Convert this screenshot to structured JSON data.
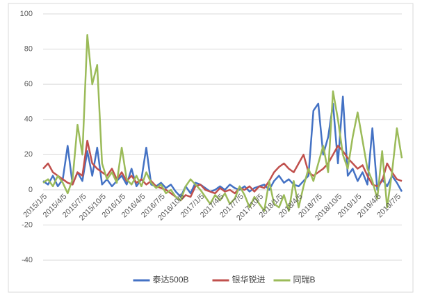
{
  "chart_data": {
    "type": "line",
    "categories": [
      "2015/1/5",
      null,
      null,
      null,
      "2015/4/5",
      null,
      null,
      null,
      "2015/7/5",
      null,
      null,
      null,
      "2015/10/5",
      null,
      null,
      null,
      "2016/1/5",
      null,
      null,
      null,
      "2016/4/5",
      null,
      null,
      null,
      "2016/7/5",
      null,
      null,
      null,
      "2016/10/5",
      null,
      null,
      null,
      "2017/1/5",
      null,
      null,
      null,
      "2017/4/5",
      null,
      null,
      null,
      "2017/7/5",
      null,
      null,
      null,
      "2017/10/5",
      null,
      null,
      null,
      "2018/1/5",
      null,
      null,
      null,
      "2018/4/5",
      null,
      null,
      null,
      "2018/7/5",
      null,
      null,
      null,
      "2018/10/5",
      null,
      null,
      null,
      "2019/1/5",
      null,
      null,
      null,
      "2019/4/5",
      null,
      null,
      null,
      "2019/7/5",
      null
    ],
    "series": [
      {
        "name": "泰达500B",
        "color": "#4472c4",
        "values": [
          5,
          3,
          8,
          2,
          6,
          25,
          3,
          10,
          5,
          22,
          8,
          24,
          3,
          6,
          2,
          5,
          8,
          3,
          12,
          2,
          6,
          24,
          3,
          2,
          4,
          1,
          3,
          -1,
          -4,
          2,
          -2,
          4,
          3,
          1,
          -1,
          0,
          2,
          0,
          3,
          1,
          0,
          2,
          -1,
          1,
          2,
          3,
          0,
          5,
          8,
          4,
          6,
          3,
          2,
          5,
          8,
          45,
          49,
          20,
          30,
          49,
          15,
          53,
          8,
          12,
          5,
          10,
          3,
          35,
          0,
          6,
          2,
          8,
          4,
          -1
        ]
      },
      {
        "name": "银华锐进",
        "color": "#c0504d",
        "values": [
          12,
          15,
          10,
          8,
          6,
          4,
          3,
          10,
          8,
          28,
          15,
          12,
          10,
          8,
          12,
          6,
          10,
          5,
          8,
          4,
          6,
          3,
          5,
          2,
          1,
          0,
          -2,
          -4,
          -6,
          -3,
          -4,
          2,
          3,
          0,
          -1,
          -2,
          1,
          -1,
          0,
          -2,
          1,
          0,
          2,
          -1,
          2,
          1,
          5,
          10,
          13,
          15,
          12,
          10,
          15,
          20,
          10,
          8,
          10,
          12,
          15,
          20,
          25,
          22,
          18,
          15,
          12,
          14,
          8,
          3,
          2,
          5,
          15,
          10,
          6,
          5
        ]
      },
      {
        "name": "同瑞B",
        "color": "#9bbb59",
        "values": [
          4,
          6,
          2,
          8,
          4,
          -2,
          6,
          37,
          20,
          88,
          60,
          71,
          15,
          6,
          10,
          4,
          24,
          6,
          3,
          8,
          2,
          10,
          4,
          1,
          3,
          -2,
          0,
          -4,
          -6,
          2,
          6,
          3,
          0,
          -4,
          -8,
          -3,
          -6,
          -2,
          -8,
          -5,
          2,
          -3,
          -10,
          -4,
          -8,
          -12,
          5,
          -8,
          -10,
          -3,
          -12,
          5,
          -10,
          2,
          12,
          5,
          15,
          25,
          10,
          56,
          40,
          20,
          12,
          30,
          44,
          28,
          12,
          5,
          -5,
          22,
          -10,
          10,
          35,
          18
        ]
      }
    ],
    "ylim": [
      -40,
      100
    ],
    "yticks": [
      -40,
      -20,
      0,
      20,
      40,
      60,
      80,
      100
    ],
    "grid": true
  }
}
